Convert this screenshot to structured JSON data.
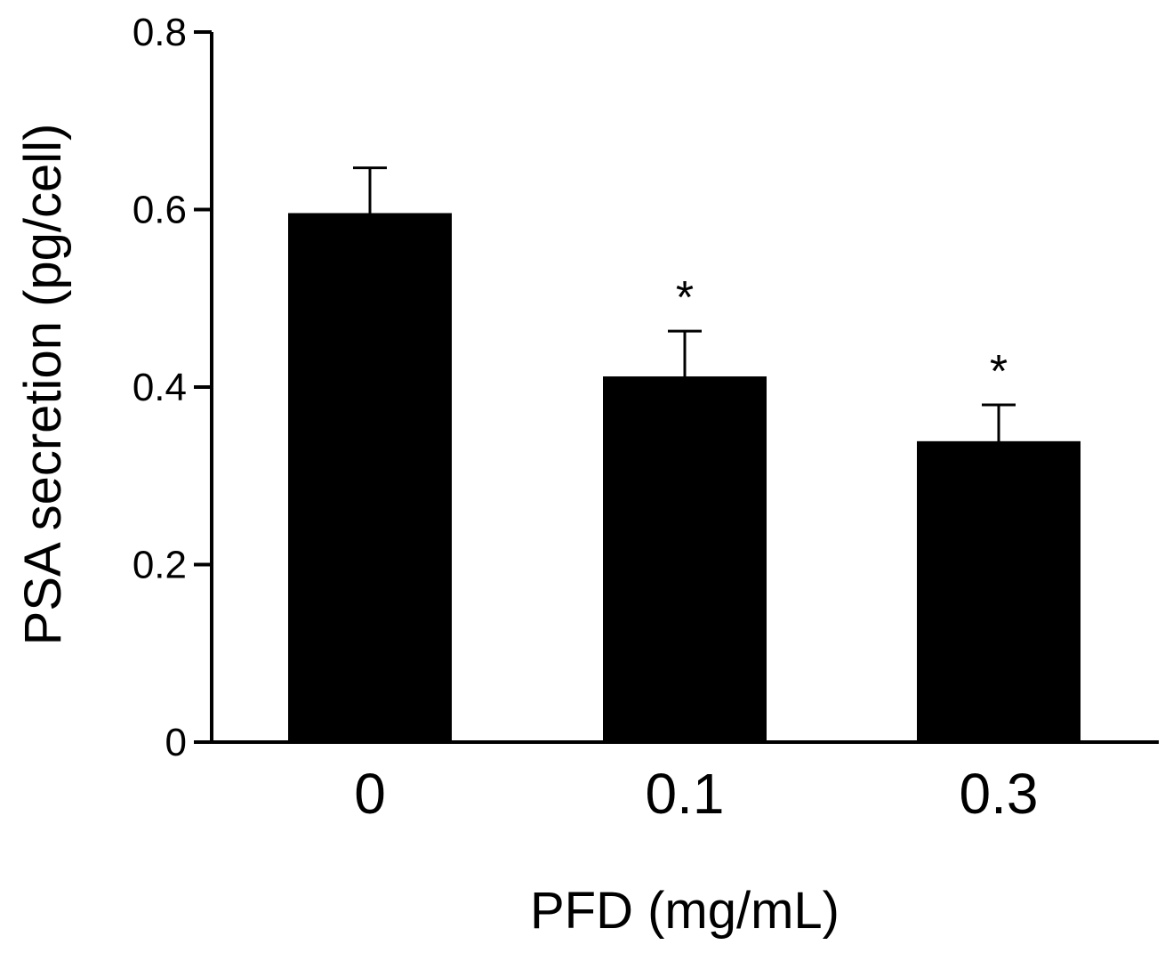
{
  "chart_data": {
    "type": "bar",
    "title": "",
    "xlabel": "PFD (mg/mL)",
    "ylabel": "PSA secretion (pg/cell)",
    "categories": [
      "0",
      "0.1",
      "0.3"
    ],
    "values": [
      0.595,
      0.411,
      0.338
    ],
    "errors": [
      0.052,
      0.052,
      0.042
    ],
    "significance": [
      "",
      "*",
      "*"
    ],
    "ylim": [
      0,
      0.8
    ],
    "yticks": [
      0,
      0.2,
      0.4,
      0.6,
      0.8
    ],
    "ytick_labels": [
      "0",
      "0.2",
      "0.4",
      "0.6",
      "0.8"
    ],
    "bar_color": "#000000",
    "grid": false,
    "legend": false
  }
}
